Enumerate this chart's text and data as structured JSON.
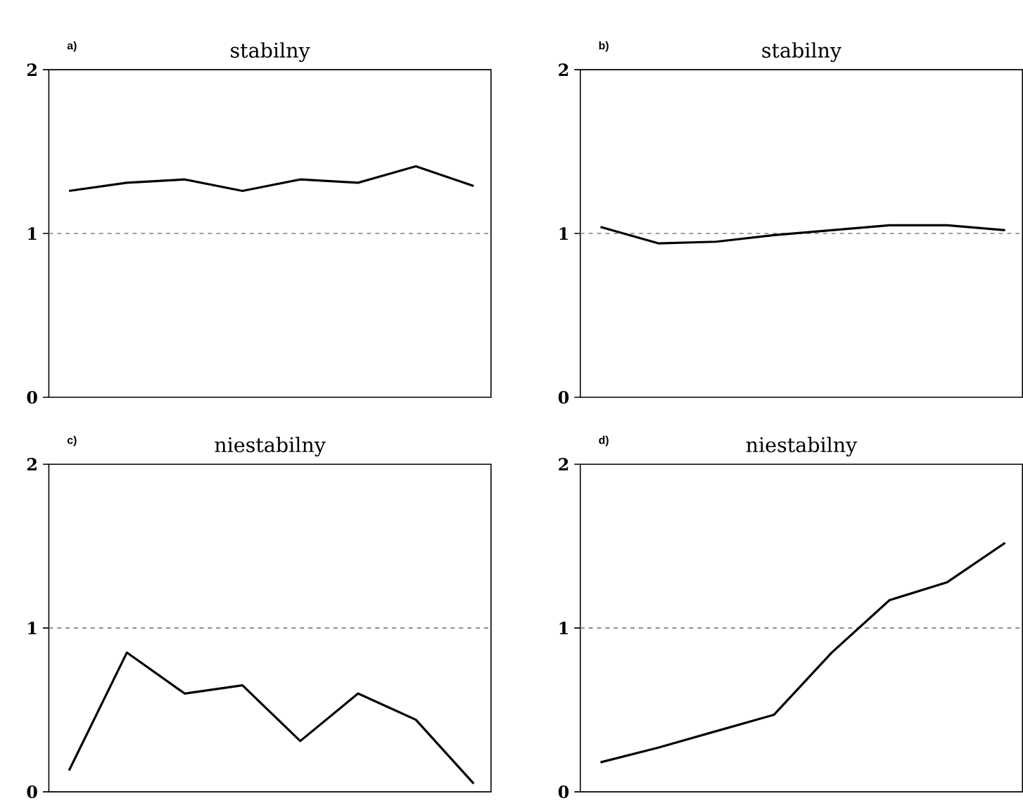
{
  "chart_data": [
    {
      "type": "line",
      "title": "stabilny",
      "annotations": [
        "a)"
      ],
      "categories": [
        null,
        null,
        null,
        null,
        null,
        null,
        null,
        null
      ],
      "ylim": [
        0,
        2
      ],
      "yticks": [
        0,
        1,
        2
      ],
      "tick_labels": "y",
      "grid": false,
      "marker": "none",
      "line_style": "solid",
      "series": [
        {
          "color": "#000000",
          "values": [
            1.26,
            1.31,
            1.33,
            1.26,
            1.33,
            1.31,
            1.41,
            1.29
          ]
        }
      ],
      "ref_lines": [
        {
          "axis": "y",
          "value": 1,
          "color": "#808080",
          "line_style": "dashed"
        }
      ]
    },
    {
      "type": "line",
      "title": "stabilny",
      "annotations": [
        "b)"
      ],
      "categories": [
        null,
        null,
        null,
        null,
        null,
        null,
        null,
        null
      ],
      "ylim": [
        0,
        2
      ],
      "yticks": [
        0,
        1,
        2
      ],
      "tick_labels": "y",
      "grid": false,
      "marker": "none",
      "line_style": "solid",
      "series": [
        {
          "color": "#000000",
          "values": [
            1.04,
            0.94,
            0.95,
            0.99,
            1.02,
            1.05,
            1.05,
            1.02
          ]
        }
      ],
      "ref_lines": [
        {
          "axis": "y",
          "value": 1,
          "color": "#808080",
          "line_style": "dashed"
        }
      ]
    },
    {
      "type": "line",
      "title": "niestabilny",
      "annotations": [
        "c)"
      ],
      "categories": [
        null,
        null,
        null,
        null,
        null,
        null,
        null,
        null
      ],
      "ylim": [
        0,
        2
      ],
      "yticks": [
        0,
        1,
        2
      ],
      "tick_labels": "y",
      "grid": false,
      "marker": "none",
      "line_style": "solid",
      "series": [
        {
          "color": "#000000",
          "values": [
            0.13,
            0.85,
            0.6,
            0.65,
            0.31,
            0.6,
            0.44,
            0.05
          ]
        }
      ],
      "ref_lines": [
        {
          "axis": "y",
          "value": 1,
          "color": "#808080",
          "line_style": "dashed"
        }
      ]
    },
    {
      "type": "line",
      "title": "niestabilny",
      "annotations": [
        "d)"
      ],
      "categories": [
        null,
        null,
        null,
        null,
        null,
        null,
        null,
        null
      ],
      "ylim": [
        0,
        2
      ],
      "yticks": [
        0,
        1,
        2
      ],
      "tick_labels": "y",
      "grid": false,
      "marker": "none",
      "line_style": "solid",
      "series": [
        {
          "color": "#000000",
          "values": [
            0.18,
            0.27,
            0.37,
            0.47,
            0.85,
            1.17,
            1.28,
            1.52
          ]
        }
      ],
      "ref_lines": [
        {
          "axis": "y",
          "value": 1,
          "color": "#808080",
          "line_style": "dashed"
        }
      ]
    }
  ]
}
